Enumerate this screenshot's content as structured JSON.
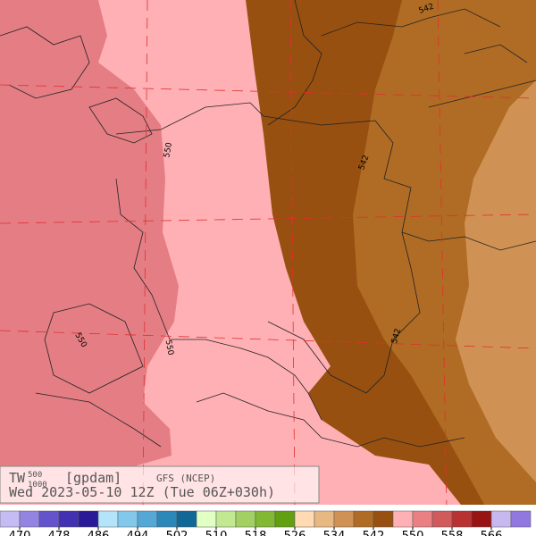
{
  "map": {
    "title": {
      "name": "TW",
      "top": "500",
      "bottom": "1000",
      "unit": "[gpdam]",
      "model": "GFS (NCEP)"
    },
    "time": "Wed 2023-05-10 12Z (Tue 06Z+030h)",
    "contour_labels": [
      "542",
      "550",
      "542",
      "550",
      "550",
      "542"
    ],
    "colorbar": {
      "colors": [
        "#c4bcf2",
        "#9484e2",
        "#6454cc",
        "#4232b2",
        "#2a1a98",
        "#b4e4fa",
        "#82c8ea",
        "#54a8d6",
        "#2c88b8",
        "#106896",
        "#e2ffc4",
        "#c2e892",
        "#a2d062",
        "#82b832",
        "#62a012",
        "#ffdab2",
        "#e8b882",
        "#d09254",
        "#b06c24",
        "#985010",
        "#ffb0b4",
        "#e88084",
        "#d05a5c",
        "#b83234",
        "#981414",
        "#c8b8f0",
        "#9078e0"
      ],
      "ticks": [
        470,
        478,
        486,
        494,
        502,
        510,
        518,
        526,
        534,
        542,
        550,
        558,
        566
      ]
    }
  }
}
